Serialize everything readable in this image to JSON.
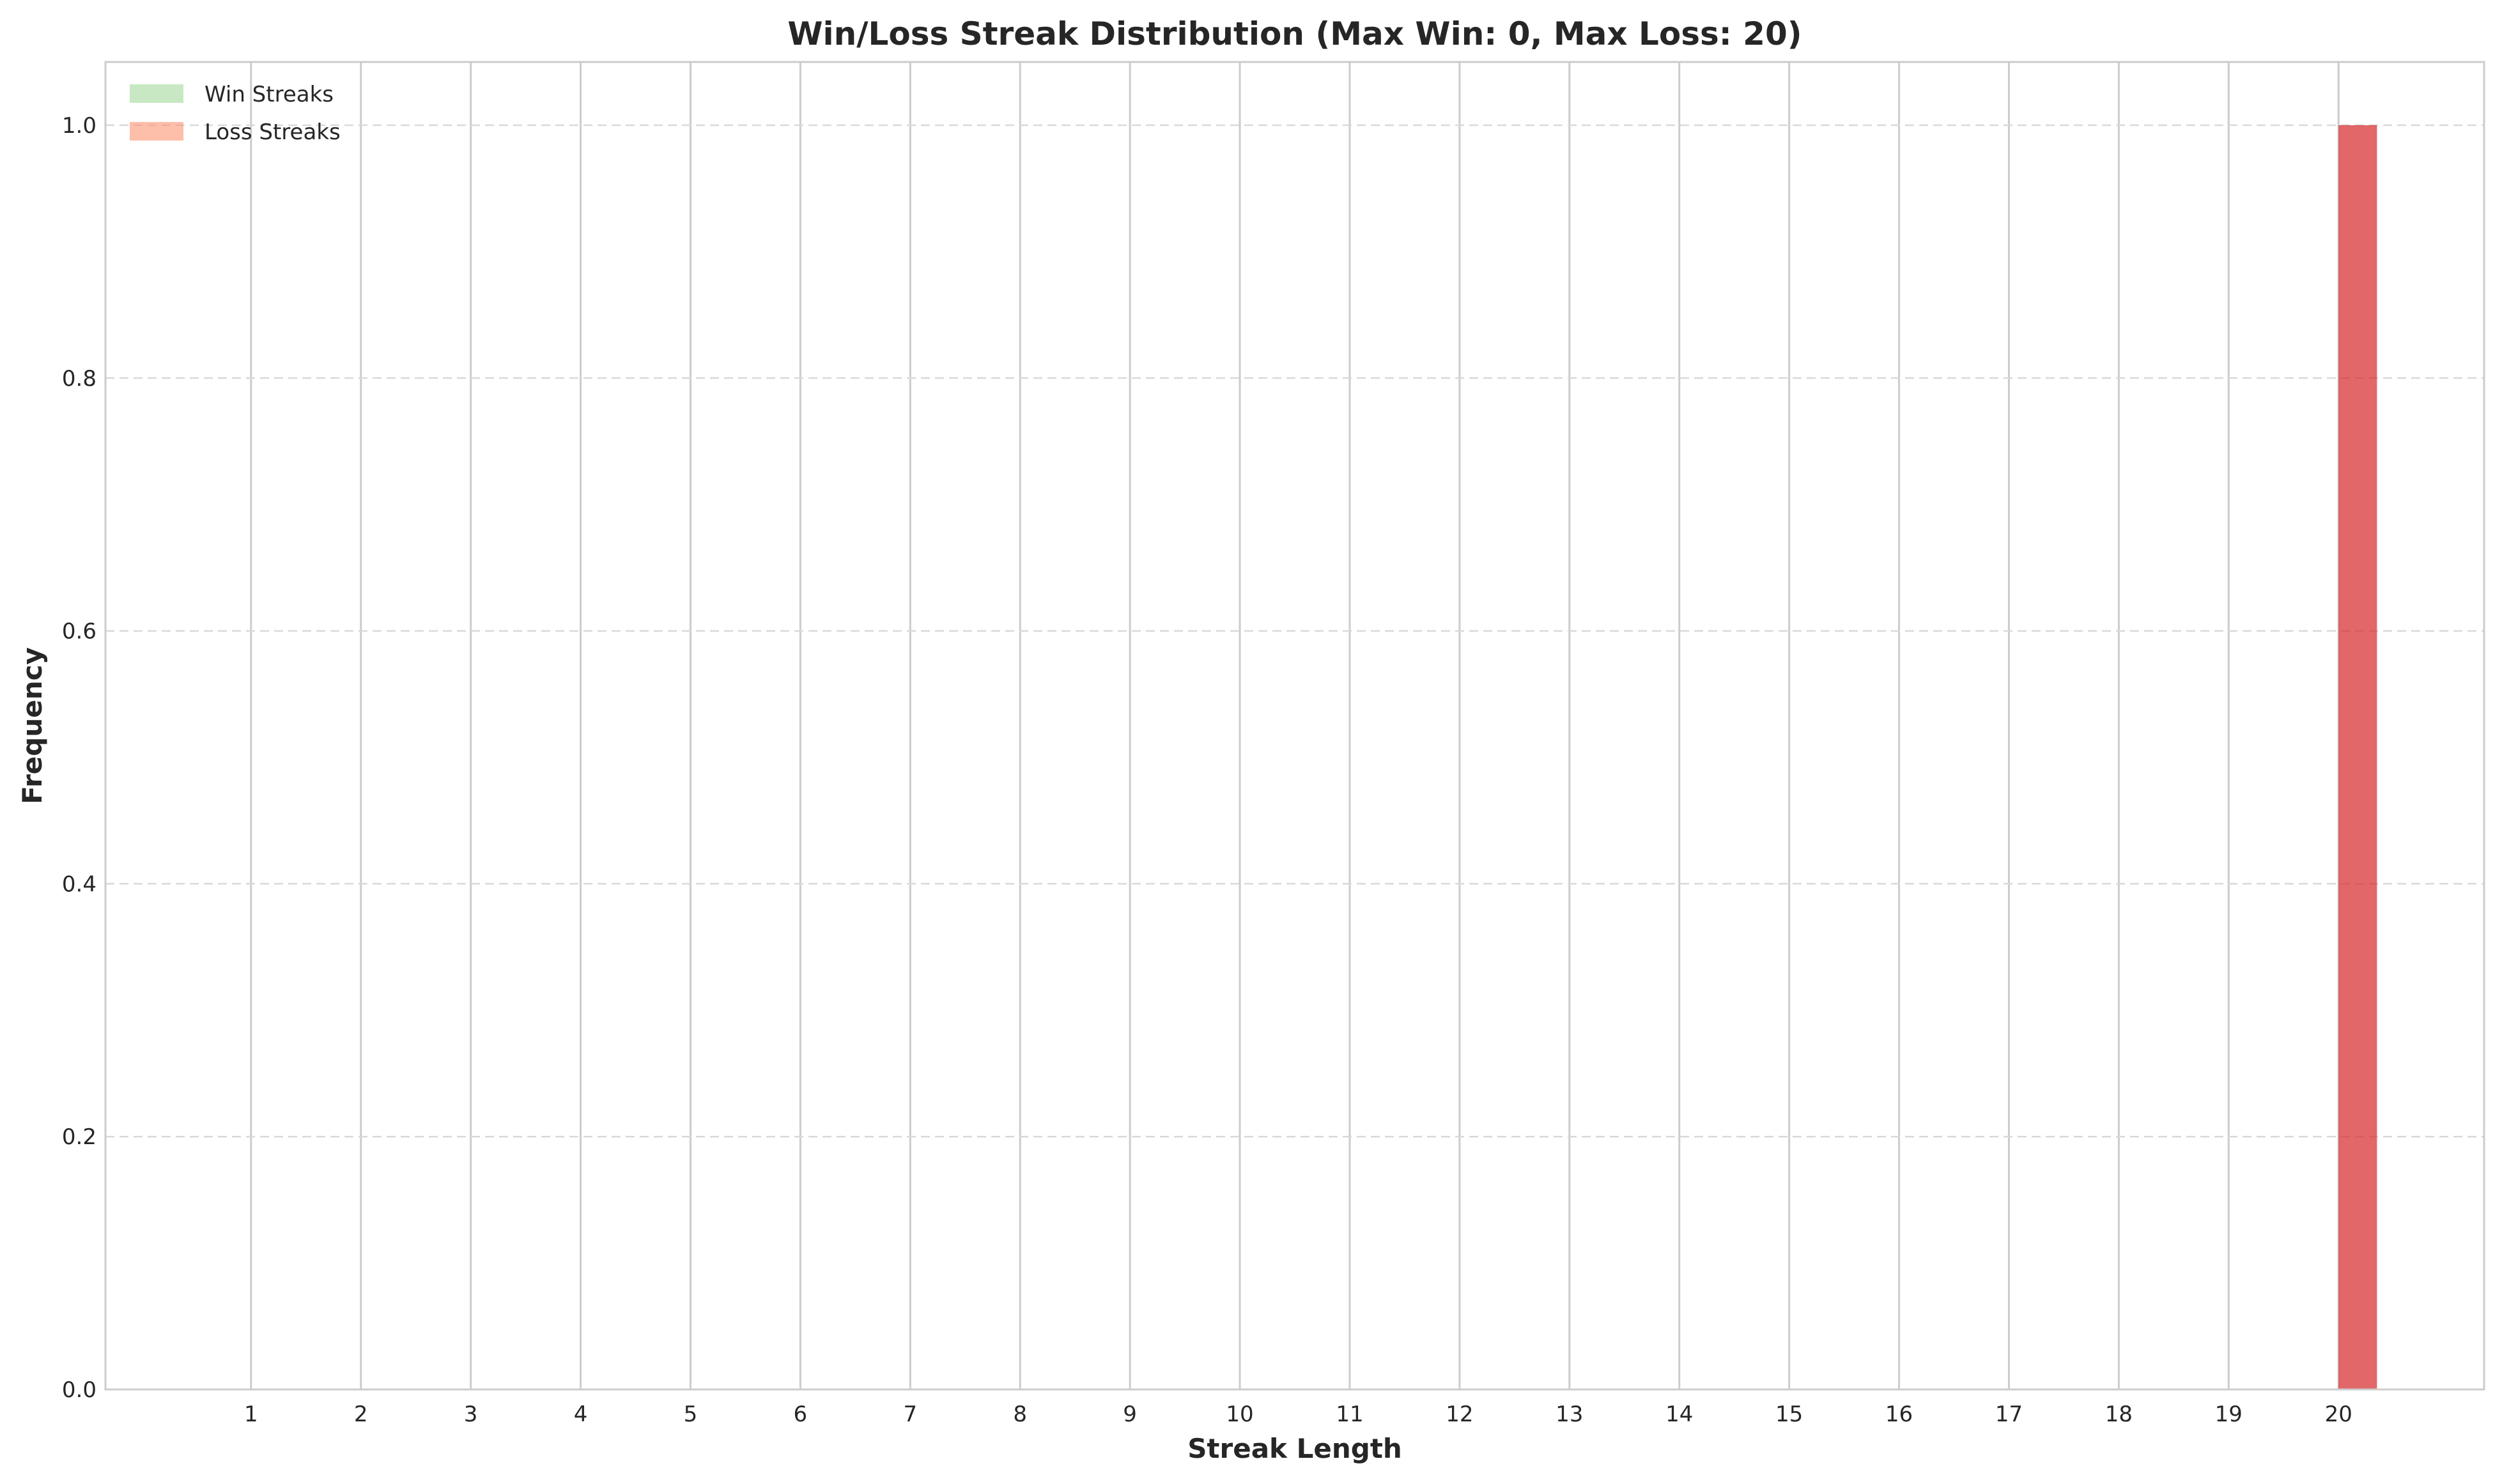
{
  "chart_data": {
    "type": "bar",
    "title": "Win/Loss Streak Distribution (Max Win: 0, Max Loss: 20)",
    "xlabel": "Streak Length",
    "ylabel": "Frequency",
    "categories": [
      "1",
      "2",
      "3",
      "4",
      "5",
      "6",
      "7",
      "8",
      "9",
      "10",
      "11",
      "12",
      "13",
      "14",
      "15",
      "16",
      "17",
      "18",
      "19",
      "20"
    ],
    "xlim": [
      -0.325,
      21.325
    ],
    "ylim": [
      0,
      1.05
    ],
    "yticks": [
      "0.0",
      "0.2",
      "0.4",
      "0.6",
      "0.8",
      "1.0"
    ],
    "grid": true,
    "legend_position": "upper-left",
    "series": [
      {
        "name": "Win Streaks",
        "color": "#a1d99b",
        "values": [
          0,
          0,
          0,
          0,
          0,
          0,
          0,
          0,
          0,
          0,
          0,
          0,
          0,
          0,
          0,
          0,
          0,
          0,
          0,
          0
        ]
      },
      {
        "name": "Loss Streaks",
        "color": "#fc9272",
        "bar_color": "#d62728",
        "values": [
          0,
          0,
          0,
          0,
          0,
          0,
          0,
          0,
          0,
          0,
          0,
          0,
          0,
          0,
          0,
          0,
          0,
          0,
          0,
          1
        ]
      }
    ]
  }
}
